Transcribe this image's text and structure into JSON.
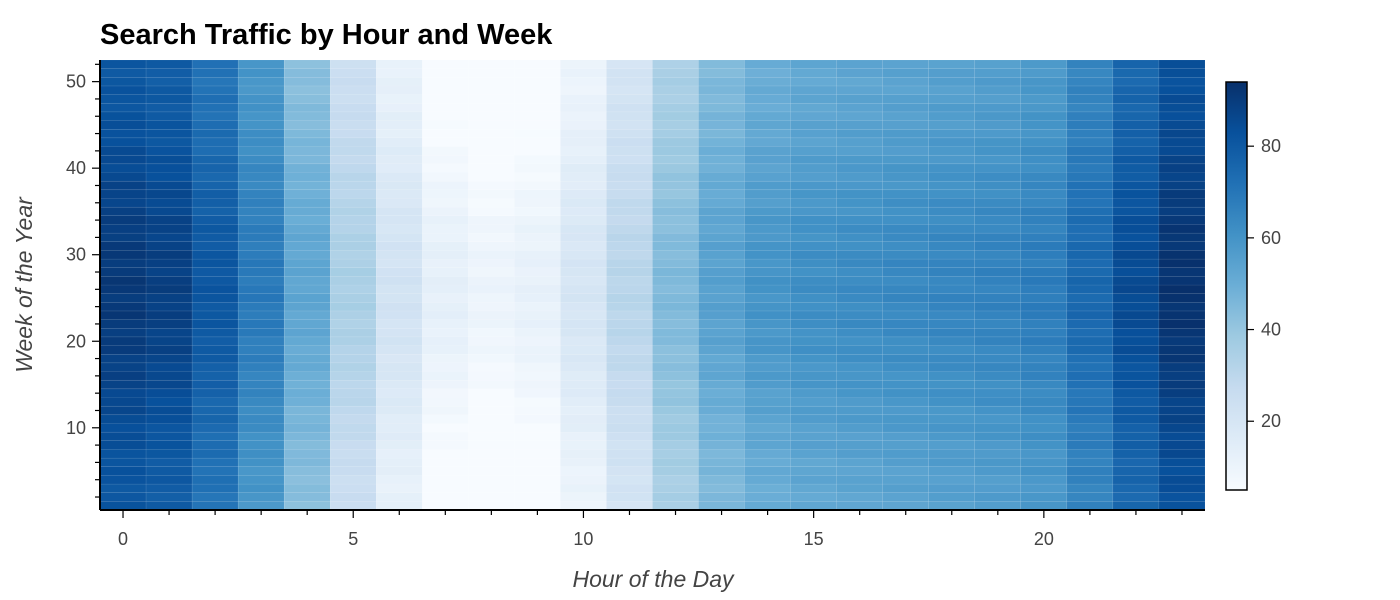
{
  "chart_data": {
    "type": "heatmap",
    "title": "Search Traffic by Hour and Week",
    "xlabel": "Hour of the Day",
    "ylabel": "Week of the Year",
    "x": [
      0,
      1,
      2,
      3,
      4,
      5,
      6,
      7,
      8,
      9,
      10,
      11,
      12,
      13,
      14,
      15,
      16,
      17,
      18,
      19,
      20,
      21,
      22,
      23
    ],
    "y_range": [
      1,
      52
    ],
    "xlim": [
      -0.5,
      23.5
    ],
    "ylim": [
      0.5,
      52.5
    ],
    "x_ticks": [
      0,
      5,
      10,
      15,
      20
    ],
    "y_ticks": [
      10,
      20,
      30,
      40,
      50
    ],
    "hourly_base_values": [
      86,
      84,
      76,
      64,
      48,
      30,
      17,
      8,
      5,
      7,
      15,
      26,
      40,
      50,
      55,
      57,
      58,
      59,
      60,
      61,
      63,
      70,
      80,
      88
    ],
    "seasonal_amplitude": 5,
    "colorscale": "Blues",
    "color_range": [
      5,
      94
    ],
    "colorbar_ticks": [
      20,
      40,
      60,
      80
    ],
    "grid": false,
    "colorbar_placement": "right"
  }
}
